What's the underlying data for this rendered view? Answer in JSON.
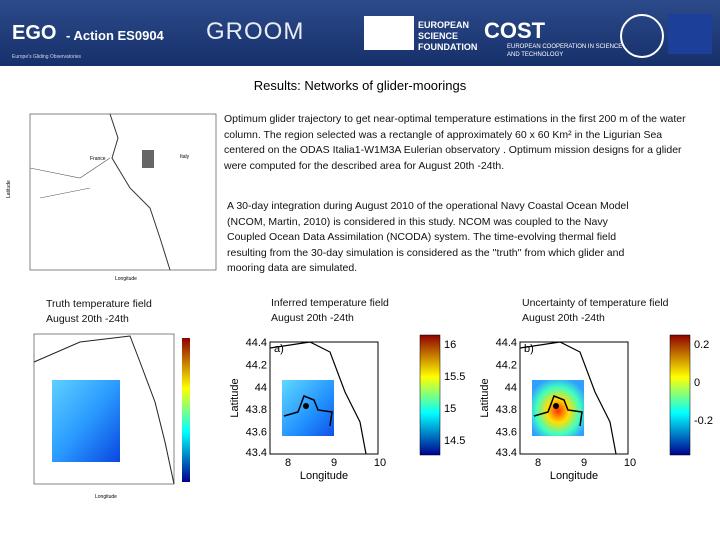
{
  "header": {
    "ego": "EGO",
    "action": "- Action ES0904",
    "ego_sub": "Europe's Gliding Observatories",
    "groom": "GROOM",
    "esf": "EUROPEAN SCIENCE FOUNDATION",
    "cost": "COST",
    "cost_sub": "EUROPEAN COOPERATION IN SCIENCE AND TECHNOLOGY"
  },
  "title": "Results: Networks of glider-moorings",
  "paragraphs": [
    "Optimum glider trajectory to get near-optimal temperature estimations in the first 200 m of the water column. The region selected was a rectangle of approximately 60 x 60 Km² in the Ligurian Sea centered on the ODAS Italia1-W1M3A Eulerian observatory . Optimum mission designs for a glider were computed for the described area for August 20th -24th.",
    "A 30-day integration during August 2010 of the operational Navy Coastal Ocean Model (NCOM, Martin, 2010) is considered in this study. NCOM was coupled to the Navy Coupled Ocean Data Assimilation (NCODA) system. The time-evolving thermal field resulting from the 30-day simulation is considered as the ''truth'' from which glider and mooring data are simulated."
  ],
  "top_map": {
    "labels": [
      "France",
      "Italy",
      "Latitude",
      "Longitude"
    ]
  },
  "panels": [
    {
      "caption": [
        "Truth temperature field",
        "August 20th -24th"
      ],
      "xlabel": "Longitude"
    },
    {
      "caption": [
        "Inferred temperature field",
        "August 20th -24th"
      ],
      "tag": "a)",
      "ylabel": "Latitude",
      "xlabel": "Longitude",
      "yticks": [
        44.4,
        44.2,
        44,
        43.8,
        43.6,
        43.4
      ],
      "xticks": [
        8,
        9,
        10
      ],
      "cbar": [
        16,
        15.5,
        15,
        14.5
      ]
    },
    {
      "caption": [
        "Uncertainty of temperature field",
        "August 20th -24th"
      ],
      "tag": "b)",
      "ylabel": "Latitude",
      "xlabel": "Longitude",
      "yticks": [
        44.4,
        44.2,
        44,
        43.8,
        43.6,
        43.4
      ],
      "xticks": [
        8,
        9,
        10
      ],
      "cbar": [
        0.2,
        0,
        -0.2
      ]
    }
  ]
}
